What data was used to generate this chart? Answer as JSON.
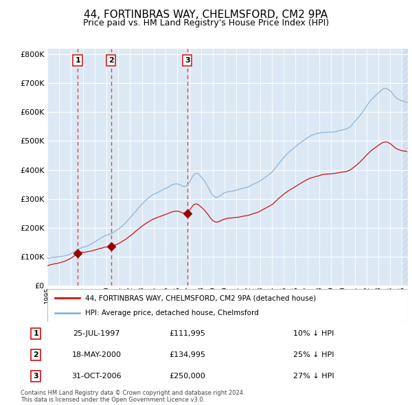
{
  "title": "44, FORTINBRAS WAY, CHELMSFORD, CM2 9PA",
  "subtitle": "Price paid vs. HM Land Registry's House Price Index (HPI)",
  "ylim": [
    0,
    820000
  ],
  "yticks": [
    0,
    100000,
    200000,
    300000,
    400000,
    500000,
    600000,
    700000,
    800000
  ],
  "xlim_start": 1995.0,
  "xlim_end": 2025.5,
  "background_color": "#dce9f5",
  "hatch_color": "#c8d8ea",
  "grid_color": "#ffffff",
  "hpi_line_color": "#8ab4d8",
  "price_line_color": "#cc1111",
  "marker_color": "#990000",
  "dashed_line_color": "#dd3333",
  "purchases": [
    {
      "date_num": 1997.56,
      "price": 111995,
      "label": "1"
    },
    {
      "date_num": 2000.38,
      "price": 134995,
      "label": "2"
    },
    {
      "date_num": 2006.83,
      "price": 250000,
      "label": "3"
    }
  ],
  "legend_entries": [
    {
      "label": "44, FORTINBRAS WAY, CHELMSFORD, CM2 9PA (detached house)",
      "color": "#cc1111"
    },
    {
      "label": "HPI: Average price, detached house, Chelmsford",
      "color": "#8ab4d8"
    }
  ],
  "table_rows": [
    {
      "num": "1",
      "date": "25-JUL-1997",
      "price": "£111,995",
      "pct": "10% ↓ HPI"
    },
    {
      "num": "2",
      "date": "18-MAY-2000",
      "price": "£134,995",
      "pct": "25% ↓ HPI"
    },
    {
      "num": "3",
      "date": "31-OCT-2006",
      "price": "£250,000",
      "pct": "27% ↓ HPI"
    }
  ],
  "footer": "Contains HM Land Registry data © Crown copyright and database right 2024.\nThis data is licensed under the Open Government Licence v3.0."
}
